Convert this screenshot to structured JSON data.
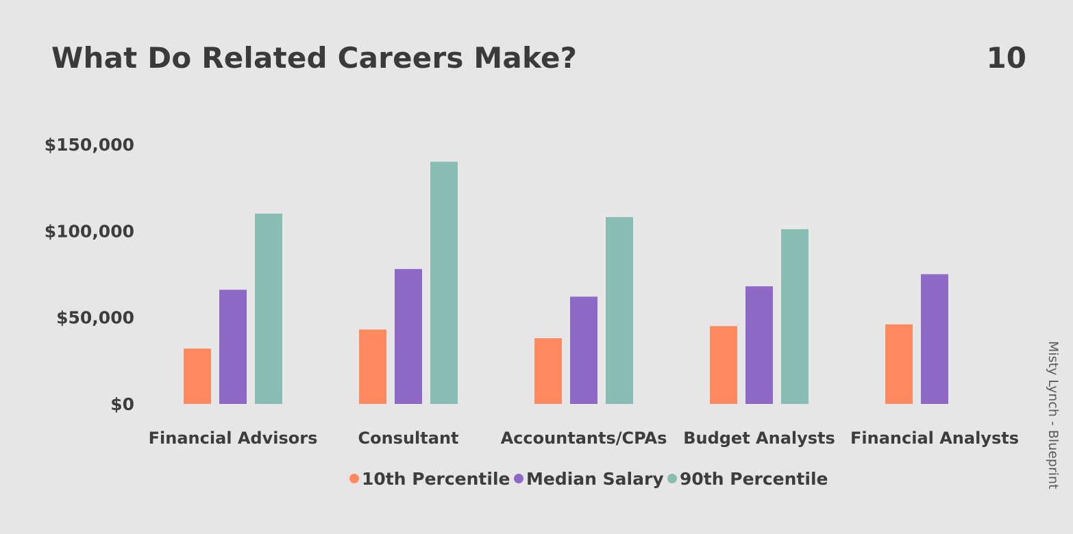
{
  "header": {
    "title": "What Do Related Careers Make?",
    "page_number": "10"
  },
  "credit": "Misty Lynch - Blueprint",
  "chart_data": {
    "type": "bar",
    "title": "",
    "xlabel": "",
    "ylabel": "",
    "categories": [
      "Financial Advisors",
      "Consultant",
      "Accountants/CPAs",
      "Budget Analysts",
      "Financial Analysts"
    ],
    "ylim": [
      0,
      150000
    ],
    "yticks": [
      {
        "value": 0,
        "label": "$0"
      },
      {
        "value": 50000,
        "label": "$50,000"
      },
      {
        "value": 100000,
        "label": "$100,000"
      },
      {
        "value": 150000,
        "label": "$150,000"
      }
    ],
    "grid": false,
    "legend_position": "bottom",
    "series": [
      {
        "name": "10th Percentile",
        "color": "#ff8a5f",
        "values": [
          32000,
          43000,
          38000,
          45000,
          46000
        ]
      },
      {
        "name": "Median Salary",
        "color": "#8e6ac6",
        "values": [
          66000,
          78000,
          62000,
          68000,
          75000
        ]
      },
      {
        "name": "90th Percentile",
        "color": "#88bdb6",
        "values": [
          110000,
          140000,
          108000,
          101000,
          null
        ]
      }
    ]
  }
}
